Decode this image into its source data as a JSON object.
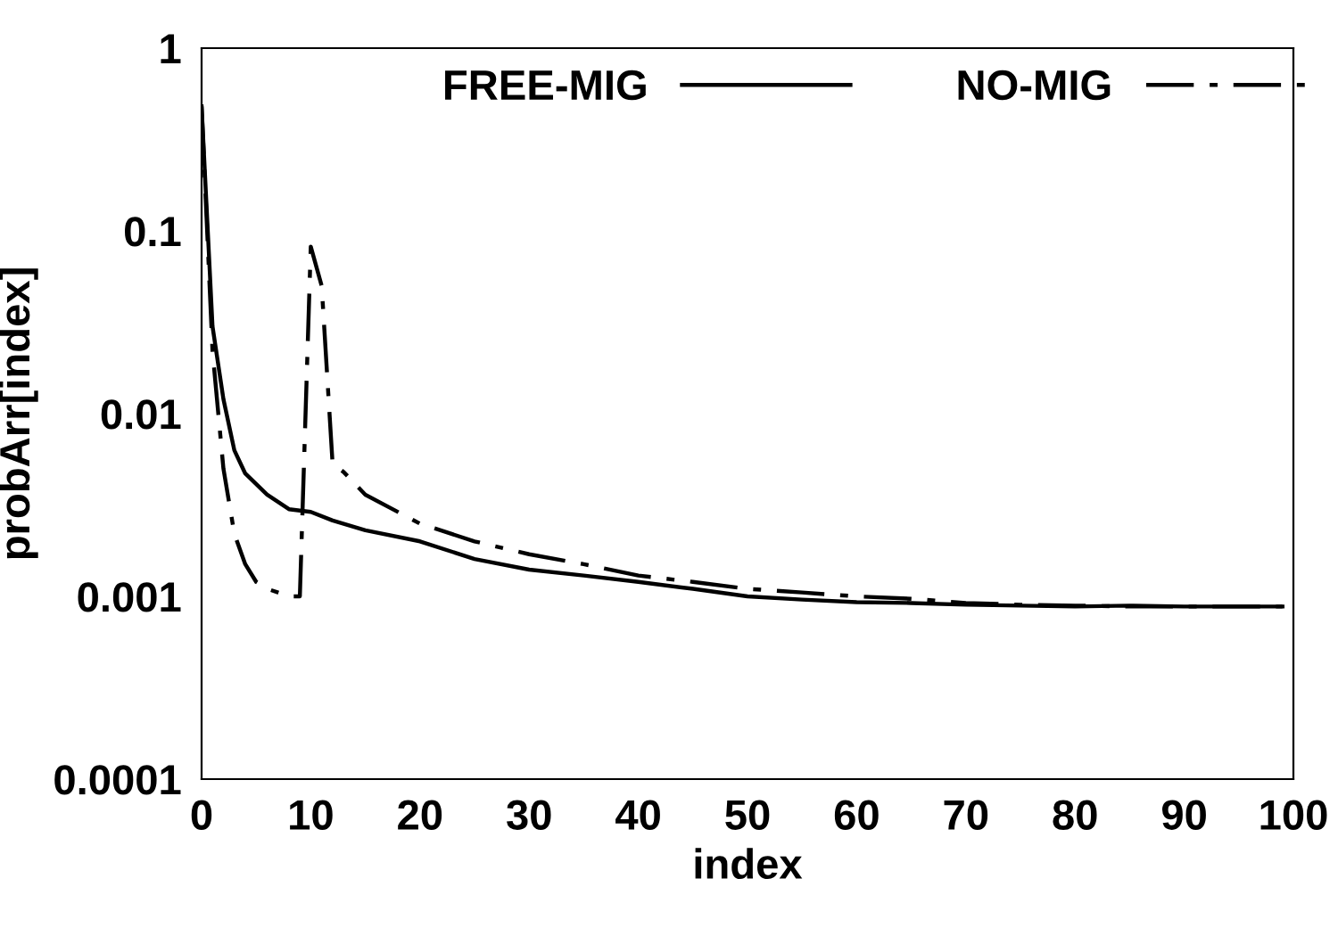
{
  "chart_data": {
    "type": "line",
    "xlabel": "index",
    "ylabel": "probArr[index]",
    "log": "y",
    "grid": false,
    "legend": "top",
    "marker": "none",
    "xlim": [
      0,
      100
    ],
    "xticks": [
      0,
      10,
      20,
      30,
      40,
      50,
      60,
      70,
      80,
      90,
      100
    ],
    "ylim": [
      0.0001,
      1
    ],
    "yticks": [
      0.0001,
      0.001,
      0.01,
      0.1,
      1
    ],
    "series": [
      {
        "name": "FREE-MIG",
        "color": "#000000",
        "line_style": "solid",
        "x": [
          0,
          1,
          2,
          3,
          4,
          6,
          8,
          10,
          12,
          15,
          20,
          25,
          30,
          35,
          40,
          45,
          50,
          55,
          60,
          65,
          70,
          75,
          80,
          85,
          90,
          95,
          99
        ],
        "values": [
          0.48,
          0.03,
          0.012,
          0.0063,
          0.0047,
          0.0036,
          0.003,
          0.0029,
          0.0026,
          0.0023,
          0.002,
          0.0016,
          0.0014,
          0.0013,
          0.0012,
          0.0011,
          0.001,
          0.00096,
          0.00093,
          0.00092,
          0.0009,
          0.00089,
          0.00088,
          0.00089,
          0.00088,
          0.00088,
          0.00088
        ]
      },
      {
        "name": "NO-MIG",
        "color": "#000000",
        "line_style": "dashdot",
        "x": [
          0,
          1,
          2,
          3,
          4,
          5,
          6,
          7,
          8,
          9,
          10,
          11,
          12,
          13,
          15,
          20,
          25,
          30,
          35,
          40,
          45,
          50,
          55,
          60,
          65,
          70,
          75,
          80,
          85,
          90,
          95,
          99
        ],
        "values": [
          0.48,
          0.022,
          0.005,
          0.0022,
          0.0015,
          0.0012,
          0.0011,
          0.00105,
          0.001,
          0.001,
          0.082,
          0.05,
          0.0053,
          0.0048,
          0.0036,
          0.0025,
          0.002,
          0.0017,
          0.0015,
          0.0013,
          0.0012,
          0.0011,
          0.00105,
          0.001,
          0.00097,
          0.00092,
          0.0009,
          0.00089,
          0.00088,
          0.00088,
          0.00088,
          0.00088
        ]
      }
    ]
  }
}
